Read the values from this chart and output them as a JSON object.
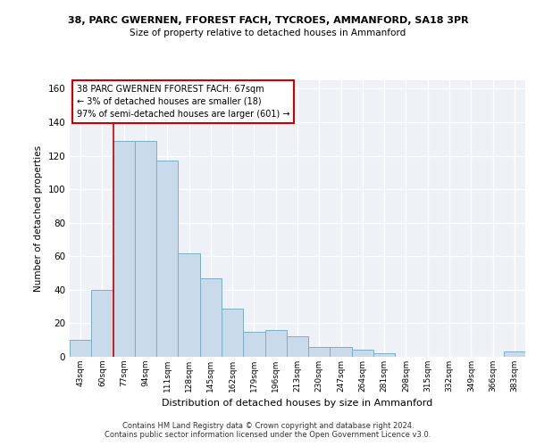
{
  "title1": "38, PARC GWERNEN, FFOREST FACH, TYCROES, AMMANFORD, SA18 3PR",
  "title2": "Size of property relative to detached houses in Ammanford",
  "xlabel": "Distribution of detached houses by size in Ammanford",
  "ylabel": "Number of detached properties",
  "categories": [
    "43sqm",
    "60sqm",
    "77sqm",
    "94sqm",
    "111sqm",
    "128sqm",
    "145sqm",
    "162sqm",
    "179sqm",
    "196sqm",
    "213sqm",
    "230sqm",
    "247sqm",
    "264sqm",
    "281sqm",
    "298sqm",
    "315sqm",
    "332sqm",
    "349sqm",
    "366sqm",
    "383sqm"
  ],
  "values": [
    10,
    40,
    129,
    129,
    117,
    62,
    47,
    29,
    15,
    16,
    12,
    6,
    6,
    4,
    2,
    0,
    0,
    0,
    0,
    0,
    3
  ],
  "bar_color": "#c9daea",
  "bar_edge_color": "#7baec8",
  "annotation_text_line1": "38 PARC GWERNEN FFOREST FACH: 67sqm",
  "annotation_text_line2": "← 3% of detached houses are smaller (18)",
  "annotation_text_line3": "97% of semi-detached houses are larger (601) →",
  "annotation_box_color": "#ffffff",
  "annotation_box_edge_color": "#cc0000",
  "vline_color": "#cc0000",
  "vline_x": 1.5,
  "ylim": [
    0,
    165
  ],
  "yticks": [
    0,
    20,
    40,
    60,
    80,
    100,
    120,
    140,
    160
  ],
  "footer1": "Contains HM Land Registry data © Crown copyright and database right 2024.",
  "footer2": "Contains public sector information licensed under the Open Government Licence v3.0.",
  "background_color": "#eef2f7"
}
